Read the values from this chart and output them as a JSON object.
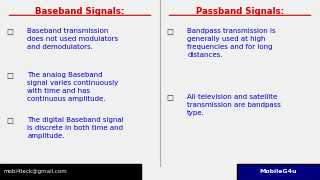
{
  "bg_color": "#f0f0f0",
  "left_title": "Baseband Signals:",
  "right_title": "Passband Signals:",
  "title_color": "#cc0000",
  "left_bullets": [
    "Baseband transmission\ndoes not used modulators\nand demodulators.",
    "The analog Baseband\nsignal varies continuously\nwith time and has\ncontinuous amplitude.",
    "The digital Baseband signal\nis discrete in both time and\namplitude."
  ],
  "right_bullets": [
    "Bandpass transmission is\ngenerally used at high\nfrequencies and for long\ndistances.",
    "All television and satellite\ntransmission are bandpass\ntype."
  ],
  "bullet_color": "#0000cc",
  "bullet_char": "☐",
  "footer_left_text": "mobi4teck@gmail.com",
  "footer_right_text": "MobileG4u",
  "footer_bg": "#000080",
  "footer_text_color": "#ffffff",
  "footer_left_bg": "#000000"
}
